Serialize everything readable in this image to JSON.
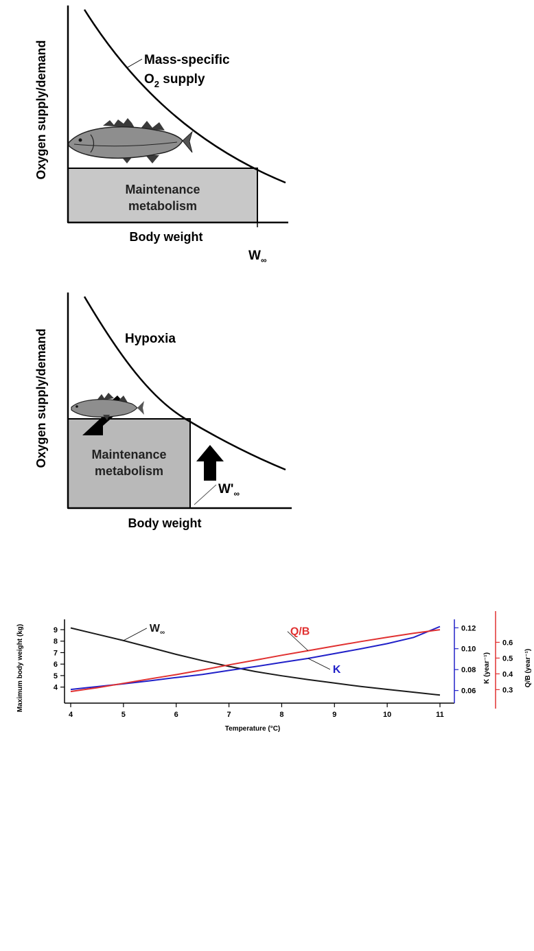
{
  "panel_top": {
    "y_axis_label": "Oxygen supply/demand",
    "x_axis_label": "Body weight",
    "box_line1": "Maintenance",
    "box_line2": "metabolism",
    "curve_label_line1": "Mass-specific",
    "curve_label_line2_main": "O",
    "curve_label_line2_sub": "2",
    "curve_label_line2_rest": " supply",
    "w_label_main": "W",
    "w_label_sub": "∞"
  },
  "panel_middle": {
    "y_axis_label": "Oxygen supply/demand",
    "x_axis_label": "Body weight",
    "box_line1": "Maintenance",
    "box_line2": "metabolism",
    "hypoxia_label": "Hypoxia",
    "w_label_main": "W'",
    "w_label_sub": "∞"
  },
  "colors": {
    "box_fill_top": "#c8c8c8",
    "box_fill_middle": "#b9b9b9",
    "series_w": "#1a1a1a",
    "series_k": "#2020c8",
    "series_qb": "#e03030"
  },
  "chart_data": {
    "type": "line",
    "xlabel": "Temperature (°C)",
    "ylabel": "Maximum body weight (kg)",
    "y2label": "K (year⁻¹)",
    "y3label": "Q/B (year⁻¹)",
    "xlim": [
      4,
      11
    ],
    "ylim": [
      3.2,
      9.3
    ],
    "y2lim": [
      0.0545,
      0.1215
    ],
    "y3lim": [
      0.258,
      0.702
    ],
    "x_ticks": [
      4,
      5,
      6,
      7,
      8,
      9,
      10,
      11
    ],
    "y_ticks": [
      4,
      5,
      6,
      7,
      8,
      9
    ],
    "y2_ticks": [
      0.06,
      0.08,
      0.1,
      0.12
    ],
    "y2_tick_labels": [
      "0.06",
      "0.08",
      "0.10",
      "0.12"
    ],
    "y3_ticks": [
      0.3,
      0.4,
      0.5,
      0.6
    ],
    "y3_tick_labels": [
      "0.3",
      "0.4",
      "0.5",
      "0.6"
    ],
    "grid": false,
    "series": [
      {
        "name": "W∞",
        "axis": "left",
        "x": [
          4,
          4.5,
          5,
          5.5,
          6,
          6.5,
          7,
          7.5,
          8,
          8.5,
          9,
          9.5,
          10,
          10.5,
          11
        ],
        "values": [
          9.15,
          8.6,
          8.05,
          7.45,
          6.85,
          6.3,
          5.8,
          5.35,
          4.98,
          4.65,
          4.35,
          4.05,
          3.8,
          3.55,
          3.3
        ]
      },
      {
        "name": "K",
        "axis": "right1",
        "x": [
          4,
          4.5,
          5,
          5.5,
          6,
          6.5,
          7,
          7.5,
          8,
          8.5,
          9,
          9.5,
          10,
          10.5,
          11
        ],
        "values": [
          0.061,
          0.0637,
          0.0664,
          0.0693,
          0.0724,
          0.0754,
          0.0792,
          0.0829,
          0.0868,
          0.0907,
          0.0953,
          0.0999,
          0.1048,
          0.1108,
          0.1212
        ]
      },
      {
        "name": "Q/B",
        "axis": "right2",
        "x": [
          4,
          4.5,
          5,
          5.5,
          6,
          6.5,
          7,
          7.5,
          8,
          8.5,
          9,
          9.5,
          10,
          10.5,
          11
        ],
        "values": [
          0.288,
          0.312,
          0.34,
          0.368,
          0.395,
          0.425,
          0.457,
          0.487,
          0.518,
          0.547,
          0.576,
          0.605,
          0.632,
          0.657,
          0.68
        ]
      }
    ],
    "annotations": [
      {
        "text": "W",
        "sub": "∞",
        "series": "W∞"
      },
      {
        "text": "Q/B",
        "series": "Q/B"
      },
      {
        "text": "K",
        "series": "K"
      }
    ]
  }
}
